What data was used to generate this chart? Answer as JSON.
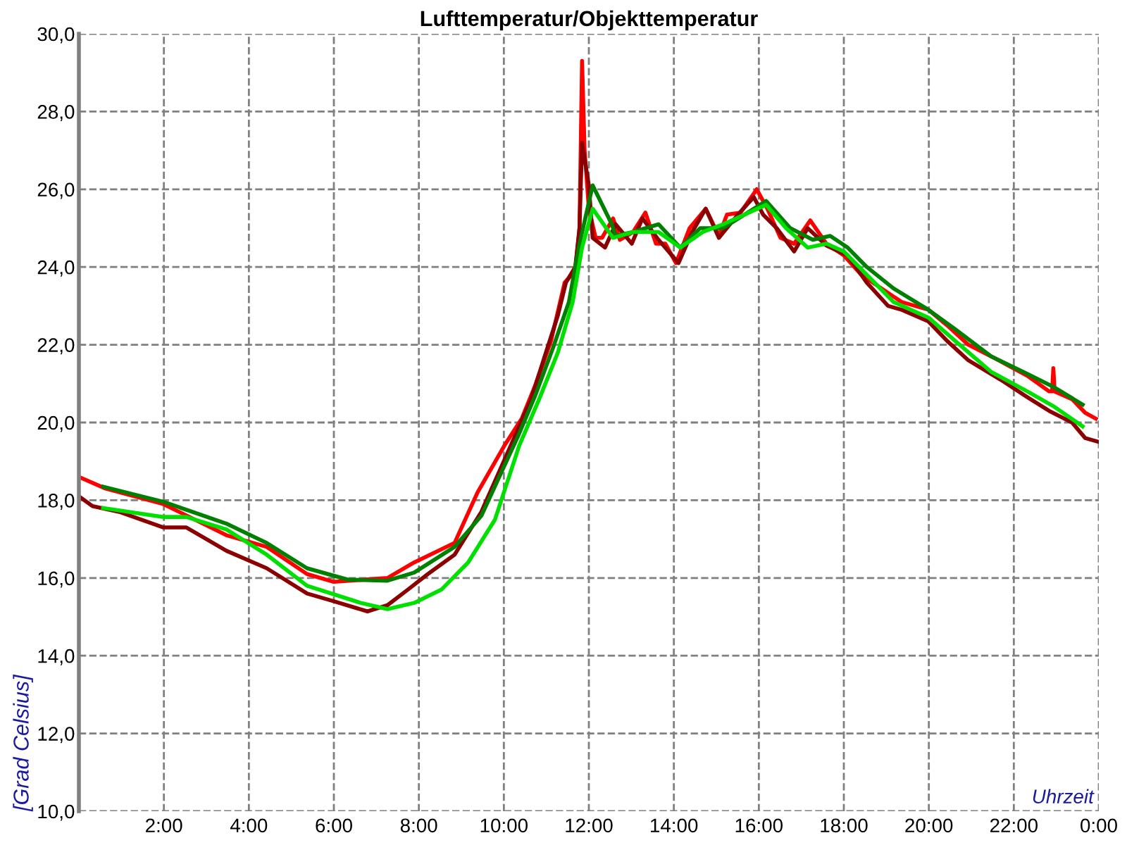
{
  "chart_data": {
    "type": "line",
    "title": "Lufttemperatur/Objekttemperatur",
    "xlabel": "Uhrzeit",
    "ylabel": "[Grad Celsius]",
    "xlim": [
      0,
      24
    ],
    "xticks": [
      {
        "value": 0,
        "label": null
      },
      {
        "value": 2,
        "label": "2:00"
      },
      {
        "value": 4,
        "label": "4:00"
      },
      {
        "value": 6,
        "label": "6:00"
      },
      {
        "value": 8,
        "label": "8:00"
      },
      {
        "value": 10,
        "label": "10:00"
      },
      {
        "value": 12,
        "label": "12:00"
      },
      {
        "value": 14,
        "label": "14:00"
      },
      {
        "value": 16,
        "label": "16:00"
      },
      {
        "value": 18,
        "label": "18:00"
      },
      {
        "value": 20,
        "label": "20:00"
      },
      {
        "value": 22,
        "label": "22:00"
      },
      {
        "value": 24,
        "label": "0:00"
      }
    ],
    "ylim": [
      10,
      30
    ],
    "yticks": [
      {
        "value": 10,
        "label": "10,0"
      },
      {
        "value": 12,
        "label": "12,0"
      },
      {
        "value": 14,
        "label": "14,0"
      },
      {
        "value": 16,
        "label": "16,0"
      },
      {
        "value": 18,
        "label": "18,0"
      },
      {
        "value": 20,
        "label": "20,0"
      },
      {
        "value": 22,
        "label": "22,0"
      },
      {
        "value": 24,
        "label": "24,0"
      },
      {
        "value": 26,
        "label": "26,0"
      },
      {
        "value": 28,
        "label": "28,0"
      },
      {
        "value": 30,
        "label": "30,0"
      }
    ],
    "grid": true,
    "legend": false,
    "marker": "none",
    "line_style": "solid",
    "series": [
      {
        "color": "#ff0000",
        "x": [
          0,
          0.63,
          1.99,
          3.47,
          4.42,
          5.37,
          6.0,
          7.26,
          7.89,
          8.84,
          9.38,
          10.01,
          10.42,
          10.74,
          11.11,
          11.43,
          11.68,
          11.78,
          11.84,
          11.9,
          12.0,
          12.16,
          12.31,
          12.57,
          12.73,
          13.04,
          13.33,
          13.58,
          13.8,
          14.05,
          14.37,
          14.75,
          15.06,
          15.25,
          15.57,
          15.95,
          16.2,
          16.51,
          16.83,
          17.21,
          17.59,
          18.0,
          18.41,
          18.95,
          19.36,
          19.99,
          20.43,
          20.93,
          21.47,
          22.32,
          22.83,
          22.9,
          22.93,
          22.96,
          23.37,
          23.68,
          23.93
        ],
        "values": [
          18.6,
          18.3,
          17.9,
          17.1,
          16.8,
          16.1,
          15.9,
          16.0,
          16.4,
          16.9,
          18.2,
          19.4,
          20.1,
          20.96,
          22.1,
          23.6,
          23.9,
          25.0,
          29.3,
          27.0,
          25.5,
          24.75,
          24.75,
          25.25,
          24.7,
          24.9,
          25.4,
          24.6,
          24.6,
          24.1,
          25.0,
          25.5,
          24.8,
          25.35,
          25.4,
          26.0,
          25.5,
          24.75,
          24.6,
          25.2,
          24.6,
          24.3,
          23.8,
          23.4,
          23.1,
          22.9,
          22.5,
          22.0,
          21.7,
          21.2,
          20.8,
          20.8,
          21.4,
          20.8,
          20.6,
          20.25,
          20.1
        ]
      },
      {
        "color": "#8b0000",
        "x": [
          0,
          0.32,
          0.95,
          1.99,
          2.53,
          3.47,
          4.42,
          5.37,
          6.0,
          6.79,
          7.26,
          7.74,
          8.21,
          8.84,
          9.47,
          10.2,
          10.64,
          10.96,
          11.27,
          11.46,
          11.68,
          11.78,
          11.84,
          12.0,
          12.09,
          12.38,
          12.63,
          13.01,
          13.26,
          13.64,
          14.11,
          14.43,
          14.75,
          15.06,
          15.47,
          15.88,
          16.1,
          16.42,
          16.83,
          17.15,
          17.59,
          18.09,
          18.54,
          19.04,
          19.36,
          19.99,
          20.43,
          20.93,
          21.69,
          22.32,
          22.83,
          23.37,
          23.68,
          24.0
        ],
        "values": [
          18.1,
          17.85,
          17.7,
          17.3,
          17.3,
          16.7,
          16.25,
          15.6,
          15.4,
          15.14,
          15.3,
          15.7,
          16.1,
          16.6,
          17.7,
          19.5,
          20.6,
          21.7,
          22.75,
          23.6,
          24.0,
          25.0,
          27.2,
          26.1,
          24.75,
          24.5,
          25.1,
          24.6,
          25.25,
          24.7,
          24.1,
          24.9,
          25.5,
          24.75,
          25.3,
          25.8,
          25.35,
          25.0,
          24.4,
          25.0,
          24.55,
          24.3,
          23.6,
          23.0,
          22.9,
          22.6,
          22.1,
          21.6,
          21.1,
          20.65,
          20.3,
          20.0,
          19.6,
          19.5
        ]
      },
      {
        "color": "#008000",
        "x": [
          0.57,
          1.99,
          3.47,
          4.42,
          5.37,
          6.32,
          7.26,
          7.89,
          8.84,
          9.47,
          10.33,
          10.74,
          11.15,
          11.53,
          11.78,
          12.09,
          12.54,
          12.63,
          13.04,
          13.64,
          14.15,
          14.62,
          15.16,
          16.17,
          16.74,
          17.27,
          17.68,
          18.09,
          18.54,
          19.17,
          19.99,
          20.62,
          21.47,
          22.32,
          22.96,
          23.62
        ],
        "values": [
          18.35,
          17.96,
          17.4,
          16.9,
          16.25,
          15.96,
          15.93,
          16.14,
          16.8,
          17.6,
          19.64,
          20.7,
          21.9,
          23.1,
          24.6,
          26.1,
          25.1,
          24.8,
          24.9,
          25.1,
          24.5,
          25.0,
          25.0,
          25.7,
          25.0,
          24.7,
          24.8,
          24.5,
          24.0,
          23.45,
          22.9,
          22.4,
          21.7,
          21.25,
          20.9,
          20.46
        ]
      },
      {
        "color": "#00e000",
        "x": [
          0.57,
          1.99,
          2.53,
          3.47,
          4.42,
          5.37,
          6.63,
          7.26,
          7.89,
          8.53,
          9.16,
          9.79,
          10.36,
          10.83,
          11.27,
          11.62,
          11.84,
          12.09,
          12.57,
          13.04,
          13.64,
          14.15,
          14.68,
          15.16,
          16.17,
          16.64,
          17.15,
          17.59,
          18.0,
          18.54,
          19.17,
          19.99,
          20.62,
          21.47,
          22.32,
          22.96,
          23.62
        ],
        "values": [
          17.8,
          17.57,
          17.57,
          17.25,
          16.6,
          15.8,
          15.36,
          15.2,
          15.36,
          15.7,
          16.4,
          17.5,
          19.4,
          20.6,
          21.8,
          23.1,
          24.5,
          25.5,
          24.75,
          24.9,
          24.9,
          24.5,
          24.9,
          25.1,
          25.6,
          25.0,
          24.5,
          24.6,
          24.4,
          23.8,
          23.1,
          22.7,
          22.1,
          21.3,
          20.8,
          20.4,
          19.9
        ]
      }
    ]
  }
}
